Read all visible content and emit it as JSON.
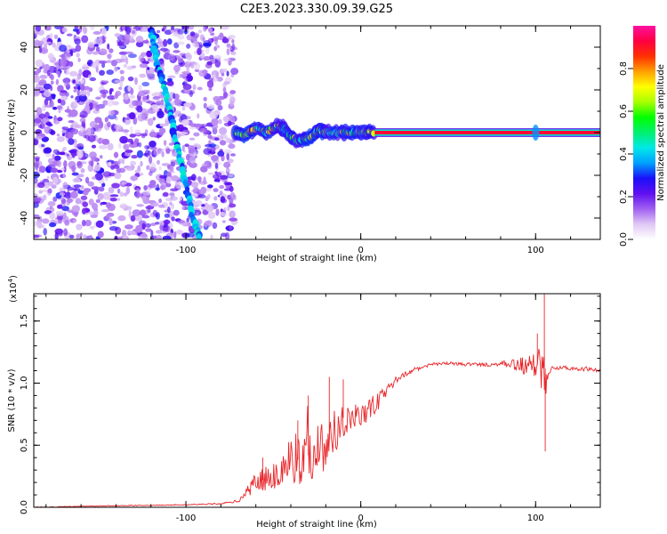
{
  "title": "C2E3.2023.330.09.39.G25",
  "chart_data": [
    {
      "type": "heatmap",
      "xlabel": "Height of straight line (km)",
      "ylabel": "Frequency (Hz)",
      "xlim": [
        -187,
        137
      ],
      "ylim": [
        -50,
        50
      ],
      "x_ticks": [
        -100,
        0,
        100
      ],
      "y_ticks": [
        -40,
        -20,
        0,
        20,
        40
      ],
      "grid": false,
      "colorbar": {
        "label": "Normalized spectral amplitude",
        "range": [
          0,
          1
        ],
        "ticks": [
          0.0,
          0.2,
          0.4,
          0.6,
          0.8
        ],
        "colormap": [
          "#ffffff",
          "#e0c8f5",
          "#a060f0",
          "#6010f0",
          "#1a10f8",
          "#00a0ff",
          "#00e8e8",
          "#00f070",
          "#00ff00",
          "#a8ff00",
          "#ffff00",
          "#ffa000",
          "#ff3000",
          "#ff0040",
          "#ff10a0"
        ]
      },
      "features": {
        "noise_region_x": [
          -187,
          -72
        ],
        "signal_start_x": -72,
        "signal_band_x": [
          8,
          137
        ],
        "signal_band_frequency": 0,
        "fading_trace": [
          [
            -120,
            48
          ],
          [
            -117,
            35
          ],
          [
            -112,
            20
          ],
          [
            -108,
            5
          ],
          [
            -104,
            -10
          ],
          [
            -100,
            -25
          ],
          [
            -96,
            -40
          ],
          [
            -92,
            -50
          ]
        ]
      }
    },
    {
      "type": "line",
      "xlabel": "Height of straight line (km)",
      "ylabel": "SNR (10 * v/v)",
      "y_multiplier": "(x10",
      "y_multiplier_exp": "4",
      "y_multiplier_close": ")",
      "xlim": [
        -187,
        137
      ],
      "ylim": [
        0,
        1.72
      ],
      "x_ticks": [
        -100,
        0,
        100
      ],
      "y_ticks": [
        0.0,
        0.5,
        1.0,
        1.5
      ],
      "grid": false,
      "series_color": "#e8262a",
      "series": [
        {
          "x": [
            -187,
            -150,
            -100,
            -80,
            -70,
            -65,
            -60,
            -55,
            -50,
            -45,
            -40,
            -35,
            -30,
            -25,
            -20,
            -15,
            -10,
            -5,
            0,
            5,
            10,
            15,
            20,
            25,
            30,
            40,
            50,
            60,
            70,
            80,
            90,
            95,
            100,
            103,
            105,
            108,
            110,
            120,
            130,
            137
          ],
          "values": [
            0.0,
            0.01,
            0.02,
            0.03,
            0.05,
            0.12,
            0.22,
            0.22,
            0.25,
            0.3,
            0.4,
            0.38,
            0.42,
            0.48,
            0.5,
            0.6,
            0.72,
            0.72,
            0.74,
            0.78,
            0.85,
            0.95,
            1.02,
            1.07,
            1.1,
            1.15,
            1.16,
            1.15,
            1.15,
            1.15,
            1.15,
            1.14,
            1.14,
            1.15,
            1.12,
            1.12,
            1.13,
            1.12,
            1.11,
            1.1
          ],
          "noise": [
            0.003,
            0.003,
            0.003,
            0.005,
            0.01,
            0.04,
            0.1,
            0.12,
            0.12,
            0.15,
            0.22,
            0.2,
            0.22,
            0.25,
            0.2,
            0.2,
            0.15,
            0.12,
            0.1,
            0.1,
            0.08,
            0.05,
            0.03,
            0.02,
            0.015,
            0.012,
            0.012,
            0.012,
            0.015,
            0.02,
            0.06,
            0.08,
            0.1,
            0.25,
            0.3,
            0.05,
            0.02,
            0.015,
            0.015,
            0.015
          ]
        }
      ]
    }
  ]
}
